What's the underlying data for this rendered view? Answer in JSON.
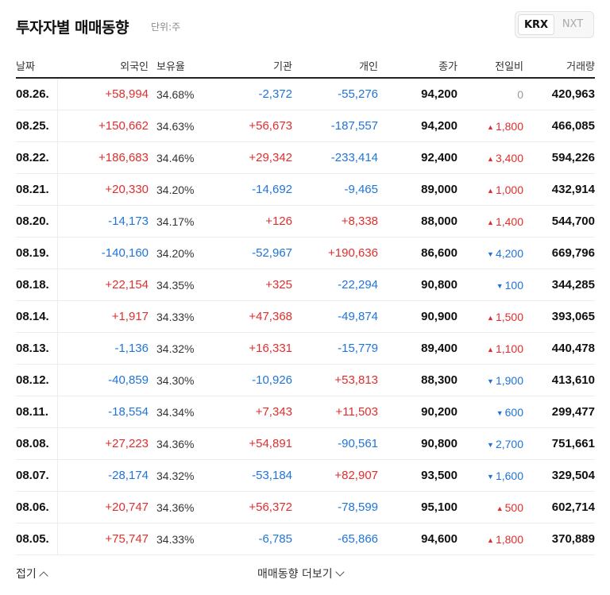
{
  "header": {
    "title": "투자자별 매매동향",
    "unit": "단위:주",
    "market_tabs": [
      "KRX",
      "NXT"
    ],
    "active_tab": "KRX"
  },
  "columns": [
    "날짜",
    "외국인",
    "보유율",
    "기관",
    "개인",
    "종가",
    "전일비",
    "거래량"
  ],
  "rows": [
    {
      "date": "08.26.",
      "foreign": "+58,994",
      "share": "34.68%",
      "inst": "-2,372",
      "indiv": "-55,276",
      "close": "94,200",
      "change": "0",
      "dir": "flat",
      "volume": "420,963"
    },
    {
      "date": "08.25.",
      "foreign": "+150,662",
      "share": "34.63%",
      "inst": "+56,673",
      "indiv": "-187,557",
      "close": "94,200",
      "change": "1,800",
      "dir": "up",
      "volume": "466,085"
    },
    {
      "date": "08.22.",
      "foreign": "+186,683",
      "share": "34.46%",
      "inst": "+29,342",
      "indiv": "-233,414",
      "close": "92,400",
      "change": "3,400",
      "dir": "up",
      "volume": "594,226"
    },
    {
      "date": "08.21.",
      "foreign": "+20,330",
      "share": "34.20%",
      "inst": "-14,692",
      "indiv": "-9,465",
      "close": "89,000",
      "change": "1,000",
      "dir": "up",
      "volume": "432,914"
    },
    {
      "date": "08.20.",
      "foreign": "-14,173",
      "share": "34.17%",
      "inst": "+126",
      "indiv": "+8,338",
      "close": "88,000",
      "change": "1,400",
      "dir": "up",
      "volume": "544,700"
    },
    {
      "date": "08.19.",
      "foreign": "-140,160",
      "share": "34.20%",
      "inst": "-52,967",
      "indiv": "+190,636",
      "close": "86,600",
      "change": "4,200",
      "dir": "down",
      "volume": "669,796"
    },
    {
      "date": "08.18.",
      "foreign": "+22,154",
      "share": "34.35%",
      "inst": "+325",
      "indiv": "-22,294",
      "close": "90,800",
      "change": "100",
      "dir": "down",
      "volume": "344,285"
    },
    {
      "date": "08.14.",
      "foreign": "+1,917",
      "share": "34.33%",
      "inst": "+47,368",
      "indiv": "-49,874",
      "close": "90,900",
      "change": "1,500",
      "dir": "up",
      "volume": "393,065"
    },
    {
      "date": "08.13.",
      "foreign": "-1,136",
      "share": "34.32%",
      "inst": "+16,331",
      "indiv": "-15,779",
      "close": "89,400",
      "change": "1,100",
      "dir": "up",
      "volume": "440,478"
    },
    {
      "date": "08.12.",
      "foreign": "-40,859",
      "share": "34.30%",
      "inst": "-10,926",
      "indiv": "+53,813",
      "close": "88,300",
      "change": "1,900",
      "dir": "down",
      "volume": "413,610"
    },
    {
      "date": "08.11.",
      "foreign": "-18,554",
      "share": "34.34%",
      "inst": "+7,343",
      "indiv": "+11,503",
      "close": "90,200",
      "change": "600",
      "dir": "down",
      "volume": "299,477"
    },
    {
      "date": "08.08.",
      "foreign": "+27,223",
      "share": "34.36%",
      "inst": "+54,891",
      "indiv": "-90,561",
      "close": "90,800",
      "change": "2,700",
      "dir": "down",
      "volume": "751,661"
    },
    {
      "date": "08.07.",
      "foreign": "-28,174",
      "share": "34.32%",
      "inst": "-53,184",
      "indiv": "+82,907",
      "close": "93,500",
      "change": "1,600",
      "dir": "down",
      "volume": "329,504"
    },
    {
      "date": "08.06.",
      "foreign": "+20,747",
      "share": "34.36%",
      "inst": "+56,372",
      "indiv": "-78,599",
      "close": "95,100",
      "change": "500",
      "dir": "up",
      "volume": "602,714"
    },
    {
      "date": "08.05.",
      "foreign": "+75,747",
      "share": "34.33%",
      "inst": "-6,785",
      "indiv": "-65,866",
      "close": "94,600",
      "change": "1,800",
      "dir": "up",
      "volume": "370,889"
    }
  ],
  "colors": {
    "positive": "#e22d2d",
    "negative": "#1f74d8",
    "neutral": "#999999"
  },
  "footer": {
    "fold_label": "접기",
    "more_label": "매매동향 더보기"
  }
}
